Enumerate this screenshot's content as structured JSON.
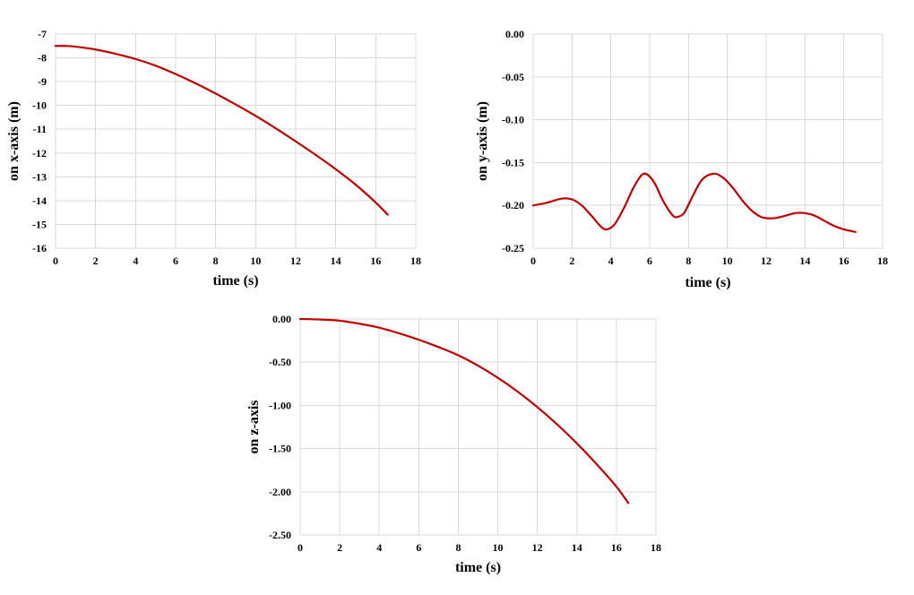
{
  "colors": {
    "series": "#c00000",
    "grid": "#d9d9d9"
  },
  "chart_data": [
    {
      "type": "line",
      "xlabel": "time (s)",
      "ylabel": "on x-axis (m)",
      "xlim": [
        0,
        18
      ],
      "ylim": [
        -16,
        -7
      ],
      "xticks": [
        "0",
        "2",
        "4",
        "6",
        "8",
        "10",
        "12",
        "14",
        "16",
        "18"
      ],
      "yticks": [
        "-7",
        "-8",
        "-9",
        "-10",
        "-11",
        "-12",
        "-13",
        "-14",
        "-15",
        "-16"
      ],
      "grid": true,
      "series": [
        {
          "x": [
            0,
            0.5,
            1,
            2,
            3,
            4,
            5,
            6,
            7,
            8,
            9,
            10,
            11,
            12,
            13,
            14,
            15,
            16,
            16.6
          ],
          "y": [
            -7.5,
            -7.5,
            -7.53,
            -7.65,
            -7.83,
            -8.05,
            -8.33,
            -8.68,
            -9.07,
            -9.5,
            -9.96,
            -10.44,
            -10.96,
            -11.51,
            -12.08,
            -12.68,
            -13.33,
            -14.08,
            -14.59
          ]
        }
      ]
    },
    {
      "type": "line",
      "xlabel": "time (s)",
      "ylabel": "on y-axis (m)",
      "xlim": [
        0,
        18
      ],
      "ylim": [
        -0.25,
        0
      ],
      "xticks": [
        "0",
        "2",
        "4",
        "6",
        "8",
        "10",
        "12",
        "14",
        "16",
        "18"
      ],
      "yticks": [
        "0.00",
        "-0.05",
        "-0.10",
        "-0.15",
        "-0.20",
        "-0.25"
      ],
      "grid": true,
      "series": [
        {
          "x": [
            0,
            0.5,
            1,
            1.5,
            2,
            2.5,
            3,
            3.5,
            3.8,
            4.2,
            4.7,
            5.2,
            5.7,
            6.2,
            6.7,
            7.2,
            7.5,
            7.8,
            8.2,
            8.7,
            9.3,
            9.8,
            10.3,
            10.8,
            11.3,
            11.8,
            12.4,
            13,
            13.5,
            14,
            14.5,
            15,
            15.5,
            16,
            16.6
          ],
          "y": [
            -0.2,
            -0.198,
            -0.195,
            -0.192,
            -0.193,
            -0.2,
            -0.212,
            -0.225,
            -0.228,
            -0.222,
            -0.202,
            -0.178,
            -0.163,
            -0.172,
            -0.195,
            -0.212,
            -0.213,
            -0.208,
            -0.19,
            -0.17,
            -0.163,
            -0.168,
            -0.18,
            -0.195,
            -0.207,
            -0.214,
            -0.215,
            -0.212,
            -0.209,
            -0.209,
            -0.212,
            -0.218,
            -0.224,
            -0.228,
            -0.231
          ]
        }
      ]
    },
    {
      "type": "line",
      "xlabel": "time (s)",
      "ylabel": "on z-axis",
      "xlim": [
        0,
        18
      ],
      "ylim": [
        -2.5,
        0
      ],
      "xticks": [
        "0",
        "2",
        "4",
        "6",
        "8",
        "10",
        "12",
        "14",
        "16",
        "18"
      ],
      "yticks": [
        "0.00",
        "-0.50",
        "-1.00",
        "-1.50",
        "-2.00",
        "-2.50"
      ],
      "grid": true,
      "series": [
        {
          "x": [
            0,
            1,
            2,
            3,
            4,
            5,
            6,
            7,
            8,
            9,
            10,
            11,
            12,
            13,
            14,
            15,
            16,
            16.6
          ],
          "y": [
            0,
            -0.005,
            -0.02,
            -0.055,
            -0.1,
            -0.165,
            -0.24,
            -0.325,
            -0.42,
            -0.54,
            -0.68,
            -0.84,
            -1.02,
            -1.22,
            -1.44,
            -1.68,
            -1.94,
            -2.13
          ]
        }
      ]
    }
  ]
}
